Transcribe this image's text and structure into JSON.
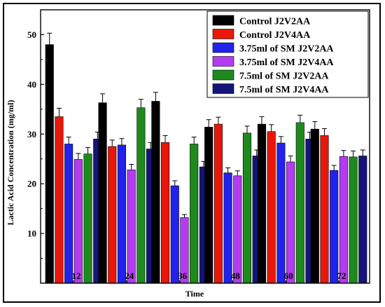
{
  "chart_data": {
    "type": "bar",
    "title": "",
    "xlabel": "Time",
    "ylabel": "Lactic Acid Concentration (mg/ml)",
    "ylim": [
      0,
      55
    ],
    "yticks": [
      10,
      20,
      30,
      40,
      50
    ],
    "categories": [
      "12",
      "24",
      "36",
      "48",
      "60",
      "72"
    ],
    "legend_position": "top-right",
    "grid": false,
    "series": [
      {
        "name": "Control J2V2AA",
        "color": "#000000",
        "values": [
          48.0,
          36.3,
          36.6,
          31.4,
          32.0,
          31.0
        ],
        "errors": [
          2.3,
          1.8,
          1.8,
          1.5,
          1.5,
          1.5
        ]
      },
      {
        "name": "Control J2V4AA",
        "color": "#e8170a",
        "values": [
          33.5,
          27.5,
          28.3,
          32.0,
          30.5,
          29.7
        ],
        "errors": [
          1.7,
          1.3,
          1.4,
          1.4,
          1.4,
          1.4
        ]
      },
      {
        "name": "3.75ml of SM J2V2AA",
        "color": "#2222ee",
        "values": [
          28.0,
          27.8,
          19.6,
          22.2,
          28.2,
          22.7
        ],
        "errors": [
          1.4,
          1.3,
          1.0,
          1.0,
          1.3,
          1.0
        ]
      },
      {
        "name": "3.75ml of SM J2V4AA",
        "color": "#b43cf0",
        "values": [
          24.9,
          22.8,
          13.2,
          21.6,
          24.4,
          25.5
        ],
        "errors": [
          1.2,
          1.1,
          0.6,
          1.0,
          1.2,
          1.2
        ]
      },
      {
        "name": "7.5ml of SM J2V2AA",
        "color": "#1e8a1e",
        "values": [
          26.0,
          35.3,
          28.0,
          30.2,
          32.3,
          25.4
        ],
        "errors": [
          1.3,
          1.7,
          1.4,
          1.4,
          1.5,
          1.2
        ]
      },
      {
        "name": "7.5ml of SM J2V4AA",
        "color": "#14147a",
        "values": [
          29.0,
          27.0,
          23.4,
          25.6,
          29.0,
          25.6
        ],
        "errors": [
          1.4,
          1.3,
          1.1,
          1.2,
          1.4,
          1.2
        ]
      }
    ]
  }
}
